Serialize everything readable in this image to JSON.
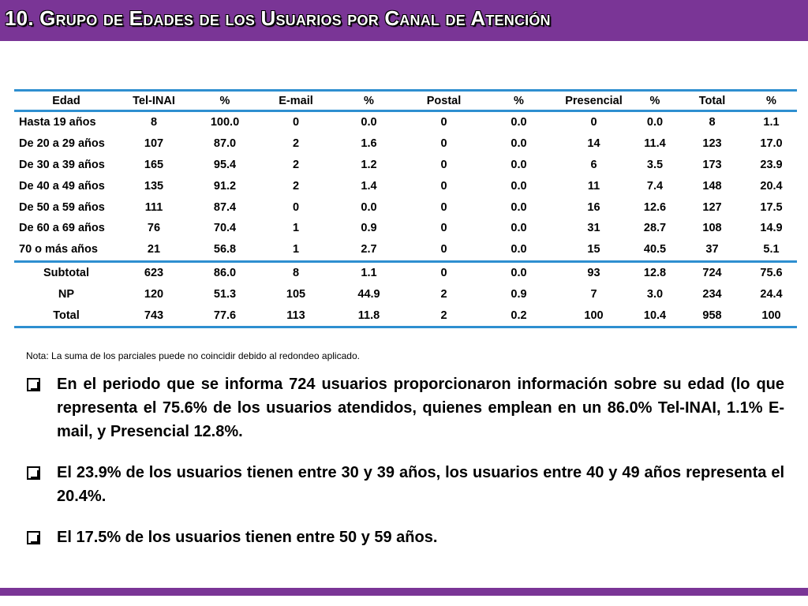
{
  "title": "10. Grupo de  Edades de los Usuarios por Canal de Atención",
  "table": {
    "headers": [
      "Edad",
      "Tel-INAI",
      "%",
      "E-mail",
      "%",
      "Postal",
      "%",
      "Presencial",
      "%",
      "Total",
      "%"
    ],
    "rows": [
      [
        "Hasta 19 años",
        "8",
        "100.0",
        "0",
        "0.0",
        "0",
        "0.0",
        "0",
        "0.0",
        "8",
        "1.1"
      ],
      [
        "De 20 a 29 años",
        "107",
        "87.0",
        "2",
        "1.6",
        "0",
        "0.0",
        "14",
        "11.4",
        "123",
        "17.0"
      ],
      [
        "De 30 a 39 años",
        "165",
        "95.4",
        "2",
        "1.2",
        "0",
        "0.0",
        "6",
        "3.5",
        "173",
        "23.9"
      ],
      [
        "De 40 a 49 años",
        "135",
        "91.2",
        "2",
        "1.4",
        "0",
        "0.0",
        "11",
        "7.4",
        "148",
        "20.4"
      ],
      [
        "De 50 a 59 años",
        "111",
        "87.4",
        "0",
        "0.0",
        "0",
        "0.0",
        "16",
        "12.6",
        "127",
        "17.5"
      ],
      [
        "De 60 a 69 años",
        "76",
        "70.4",
        "1",
        "0.9",
        "0",
        "0.0",
        "31",
        "28.7",
        "108",
        "14.9"
      ],
      [
        "70 o más años",
        "21",
        "56.8",
        "1",
        "2.7",
        "0",
        "0.0",
        "15",
        "40.5",
        "37",
        "5.1"
      ],
      [
        "Subtotal",
        "623",
        "86.0",
        "8",
        "1.1",
        "0",
        "0.0",
        "93",
        "12.8",
        "724",
        "75.6"
      ],
      [
        "NP",
        "120",
        "51.3",
        "105",
        "44.9",
        "2",
        "0.9",
        "7",
        "3.0",
        "234",
        "24.4"
      ],
      [
        "Total",
        "743",
        "77.6",
        "113",
        "11.8",
        "2",
        "0.2",
        "100",
        "10.4",
        "958",
        "100"
      ]
    ]
  },
  "note": "Nota: La suma de los parciales puede no coincidir debido al redondeo aplicado.",
  "bullets": [
    "En el periodo que se informa 724 usuarios proporcionaron información sobre su edad (lo que representa el 75.6% de los usuarios atendidos, quienes emplean en un 86.0% Tel-INAI, 1.1% E-mail, y Presencial 12.8%.",
    "El 23.9% de los usuarios tienen entre 30 y 39 años, los usuarios entre 40 y 49 años representa el 20.4%.",
    "El 17.5% de los usuarios tienen entre 50 y 59 años."
  ],
  "colors": {
    "accent": "#7a3596",
    "rule": "#2e8fd0"
  },
  "icons": {
    "bullet": "checkbox-bullet-icon"
  }
}
